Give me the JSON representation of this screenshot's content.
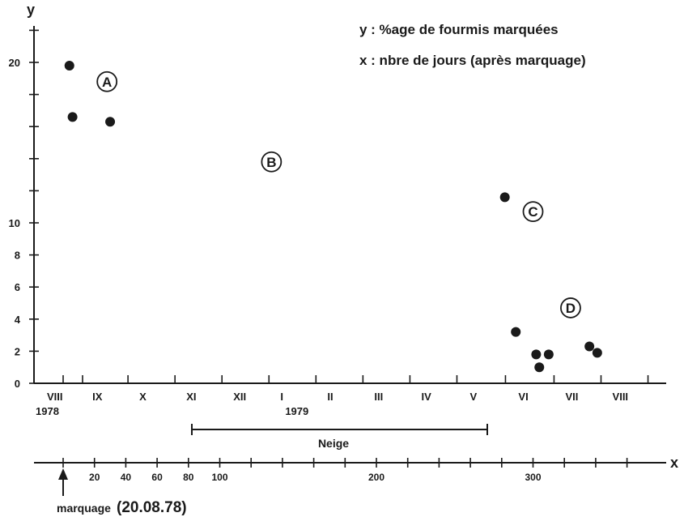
{
  "chart_data": {
    "type": "scatter",
    "axis_letters": {
      "y": "y",
      "x": "x"
    },
    "legend": [
      "y : %age de fourmis marquées",
      "x : nbre de jours (après marquage)"
    ],
    "ylim": [
      0,
      20
    ],
    "y_ticks": [
      {
        "value": 0,
        "label": "0"
      },
      {
        "value": 2,
        "label": "2"
      },
      {
        "value": 4,
        "label": "4"
      },
      {
        "value": 6,
        "label": "6"
      },
      {
        "value": 8,
        "label": "8"
      },
      {
        "value": 10,
        "label": "10"
      },
      {
        "value": 12,
        "label": ""
      },
      {
        "value": 14,
        "label": ""
      },
      {
        "value": 16,
        "label": ""
      },
      {
        "value": 18,
        "label": ""
      },
      {
        "value": 20,
        "label": "20"
      },
      {
        "value": 22,
        "label": ""
      }
    ],
    "xlim": [
      -18,
      382
    ],
    "x_ticks": [
      {
        "value": 0,
        "label": ""
      },
      {
        "value": 20,
        "label": "20"
      },
      {
        "value": 40,
        "label": "40"
      },
      {
        "value": 60,
        "label": "60"
      },
      {
        "value": 80,
        "label": "80"
      },
      {
        "value": 100,
        "label": "100"
      },
      {
        "value": 120,
        "label": ""
      },
      {
        "value": 140,
        "label": ""
      },
      {
        "value": 160,
        "label": ""
      },
      {
        "value": 180,
        "label": ""
      },
      {
        "value": 200,
        "label": "200"
      },
      {
        "value": 220,
        "label": ""
      },
      {
        "value": 240,
        "label": ""
      },
      {
        "value": 260,
        "label": ""
      },
      {
        "value": 280,
        "label": ""
      },
      {
        "value": 300,
        "label": "300"
      },
      {
        "value": 320,
        "label": ""
      },
      {
        "value": 340,
        "label": ""
      },
      {
        "value": 360,
        "label": ""
      }
    ],
    "months": [
      {
        "label": "VIII",
        "x": 0
      },
      {
        "label": "IX",
        "x": 29
      },
      {
        "label": "X",
        "x": 59
      },
      {
        "label": "XI",
        "x": 89
      },
      {
        "label": "XII",
        "x": 119
      },
      {
        "label": "I",
        "x": 149
      },
      {
        "label": "II",
        "x": 179
      },
      {
        "label": "III",
        "x": 209
      },
      {
        "label": "IV",
        "x": 239
      },
      {
        "label": "V",
        "x": 270
      },
      {
        "label": "VI",
        "x": 301
      },
      {
        "label": "VII",
        "x": 331
      },
      {
        "label": "VIII",
        "x": 361
      }
    ],
    "year_labels": [
      {
        "label": "1978",
        "x": 0
      },
      {
        "label": "1979",
        "x": 149
      }
    ],
    "snow_period": {
      "label": "Neige",
      "start": 82,
      "end": 267
    },
    "marking": {
      "label": "marquage",
      "date": "(20.08.78)",
      "x": 0
    },
    "region_labels": [
      {
        "label": "A",
        "x": 28,
        "y": 18.8
      },
      {
        "label": "B",
        "x": 133,
        "y": 13.8
      },
      {
        "label": "C",
        "x": 300,
        "y": 10.7
      },
      {
        "label": "D",
        "x": 324,
        "y": 4.7
      }
    ],
    "points": [
      {
        "x": 4,
        "y": 19.8
      },
      {
        "x": 6,
        "y": 16.6
      },
      {
        "x": 30,
        "y": 16.3
      },
      {
        "x": 282,
        "y": 11.6
      },
      {
        "x": 289,
        "y": 3.2
      },
      {
        "x": 302,
        "y": 1.8
      },
      {
        "x": 304,
        "y": 1.0
      },
      {
        "x": 310,
        "y": 1.8
      },
      {
        "x": 336,
        "y": 2.3
      },
      {
        "x": 341,
        "y": 1.9
      }
    ]
  }
}
